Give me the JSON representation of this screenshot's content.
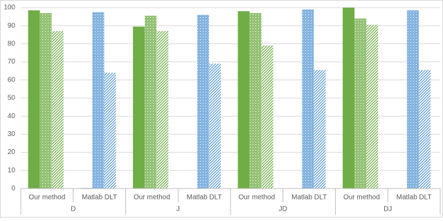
{
  "chart_data": {
    "type": "bar",
    "groups": [
      "D",
      "J",
      "JD",
      "DJ"
    ],
    "categories": [
      "Our method",
      "Matlab DLT",
      "Our method",
      "Matlab DLT",
      "Our method",
      "Matlab DLT",
      "Our method",
      "Matlab DLT"
    ],
    "category_colors": [
      "#70ad47",
      "#5b9bd5",
      "#70ad47",
      "#5b9bd5",
      "#70ad47",
      "#5b9bd5",
      "#70ad47",
      "#5b9bd5"
    ],
    "series": [
      {
        "pattern": "solid",
        "values": [
          98.5,
          0.3,
          89.5,
          0,
          98,
          0,
          100,
          0
        ]
      },
      {
        "pattern": "dots",
        "values": [
          97,
          97.5,
          95.5,
          96,
          97,
          99,
          94,
          98.5
        ]
      },
      {
        "pattern": "hatch",
        "values": [
          87,
          64,
          87,
          69,
          79,
          65.5,
          90.5,
          65.5
        ]
      }
    ],
    "ylim": [
      0,
      100
    ],
    "yticks": [
      0,
      10,
      20,
      30,
      40,
      50,
      60,
      70,
      80,
      90,
      100
    ],
    "grid": true
  }
}
